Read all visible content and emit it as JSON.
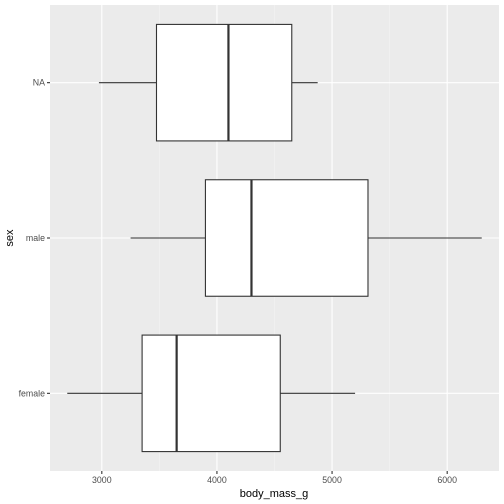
{
  "chart_data": {
    "type": "boxplot",
    "orientation": "horizontal",
    "xlabel": "body_mass_g",
    "ylabel": "sex",
    "xlim": [
      2550,
      6450
    ],
    "x_ticks": [
      3000,
      4000,
      5000,
      6000
    ],
    "x_minor_ticks": [
      2500,
      3500,
      4500,
      5500,
      6500
    ],
    "categories": [
      "female",
      "male",
      "NA"
    ],
    "grid": true,
    "legend": "none",
    "boxes": [
      {
        "category": "female",
        "min": 2700,
        "q1": 3350,
        "median": 3650,
        "q3": 4550,
        "max": 5200
      },
      {
        "category": "male",
        "min": 3250,
        "q1": 3900,
        "median": 4300,
        "q3": 5312,
        "max": 6300
      },
      {
        "category": "NA",
        "min": 2975,
        "q1": 3475,
        "median": 4100,
        "q3": 4650,
        "max": 4875
      }
    ],
    "colors": {
      "panel": "#ebebeb",
      "grid_major": "#ffffff",
      "grid_minor": "#f5f5f5",
      "box_fill": "#ffffff",
      "box_stroke": "#333333",
      "tick_label": "#4d4d4d"
    }
  }
}
